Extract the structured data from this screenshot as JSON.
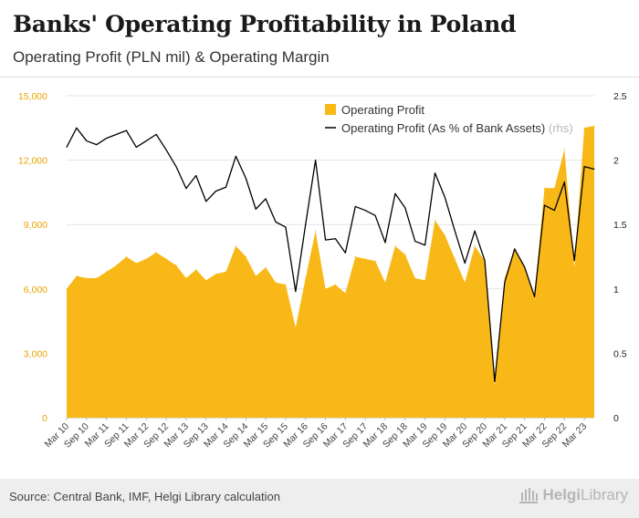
{
  "header": {
    "title": "Banks' Operating Profitability in Poland",
    "subtitle": "Operating Profit (PLN mil) & Operating Margin"
  },
  "footer": {
    "source": "Source: Central Bank, IMF, Helgi Library calculation",
    "logo_word1": "Helgi",
    "logo_word2": "Library",
    "logo_icon": "library-columns-icon"
  },
  "colors": {
    "area": "#F8B817",
    "line": "#000000",
    "grid": "#e3e3e3",
    "axis_text": "#444444",
    "left_tick": "#E8A300"
  },
  "chart_data": {
    "type": "area",
    "x_tick_labels": [
      "Mar 10",
      "Sep 10",
      "Mar 11",
      "Sep 11",
      "Mar 12",
      "Sep 12",
      "Mar 13",
      "Sep 13",
      "Mar 14",
      "Sep 14",
      "Mar 15",
      "Sep 15",
      "Mar 16",
      "Sep 16",
      "Mar 17",
      "Sep 17",
      "Mar 18",
      "Sep 18",
      "Mar 19",
      "Sep 19",
      "Mar 20",
      "Sep 20",
      "Mar 21",
      "Sep 21",
      "Mar 22",
      "Sep 22",
      "Mar 23"
    ],
    "y_left": {
      "range": [
        0,
        15000
      ],
      "ticks": [
        "0",
        "3,000",
        "6,000",
        "9,000",
        "12,000",
        "15,000"
      ]
    },
    "y_right": {
      "range": [
        0,
        2.5
      ],
      "ticks": [
        "0",
        "0.5",
        "1",
        "1.5",
        "2",
        "2.5"
      ]
    },
    "legend": {
      "position": "top-right",
      "rhs_note": "(rhs)"
    },
    "series": [
      {
        "name": "Operating Profit",
        "type": "area",
        "axis": "left",
        "values": [
          6000,
          6600,
          6500,
          6500,
          6800,
          7100,
          7500,
          7200,
          7400,
          7700,
          7400,
          7100,
          6500,
          6900,
          6400,
          6700,
          6800,
          8000,
          7500,
          6600,
          7000,
          6300,
          6200,
          4200,
          6500,
          8700,
          6000,
          6200,
          5800,
          7500,
          7400,
          7300,
          6300,
          8000,
          7600,
          6500,
          6400,
          9200,
          8500,
          7400,
          6300,
          8000,
          7300,
          1500,
          6500,
          7900,
          7000,
          5700,
          10700,
          10700,
          12500,
          7000,
          13500,
          13600
        ]
      },
      {
        "name": "Operating Profit (As % of Bank Assets)",
        "type": "line",
        "axis": "right",
        "values": [
          2.1,
          2.25,
          2.15,
          2.12,
          2.17,
          2.2,
          2.23,
          2.1,
          2.15,
          2.2,
          2.08,
          1.95,
          1.78,
          1.88,
          1.68,
          1.76,
          1.79,
          2.03,
          1.86,
          1.62,
          1.7,
          1.52,
          1.48,
          0.98,
          1.5,
          2.0,
          1.38,
          1.39,
          1.28,
          1.64,
          1.61,
          1.57,
          1.36,
          1.74,
          1.63,
          1.37,
          1.34,
          1.9,
          1.71,
          1.45,
          1.2,
          1.45,
          1.22,
          0.28,
          1.05,
          1.31,
          1.17,
          0.94,
          1.65,
          1.61,
          1.83,
          1.22,
          1.95,
          1.93
        ]
      }
    ]
  }
}
